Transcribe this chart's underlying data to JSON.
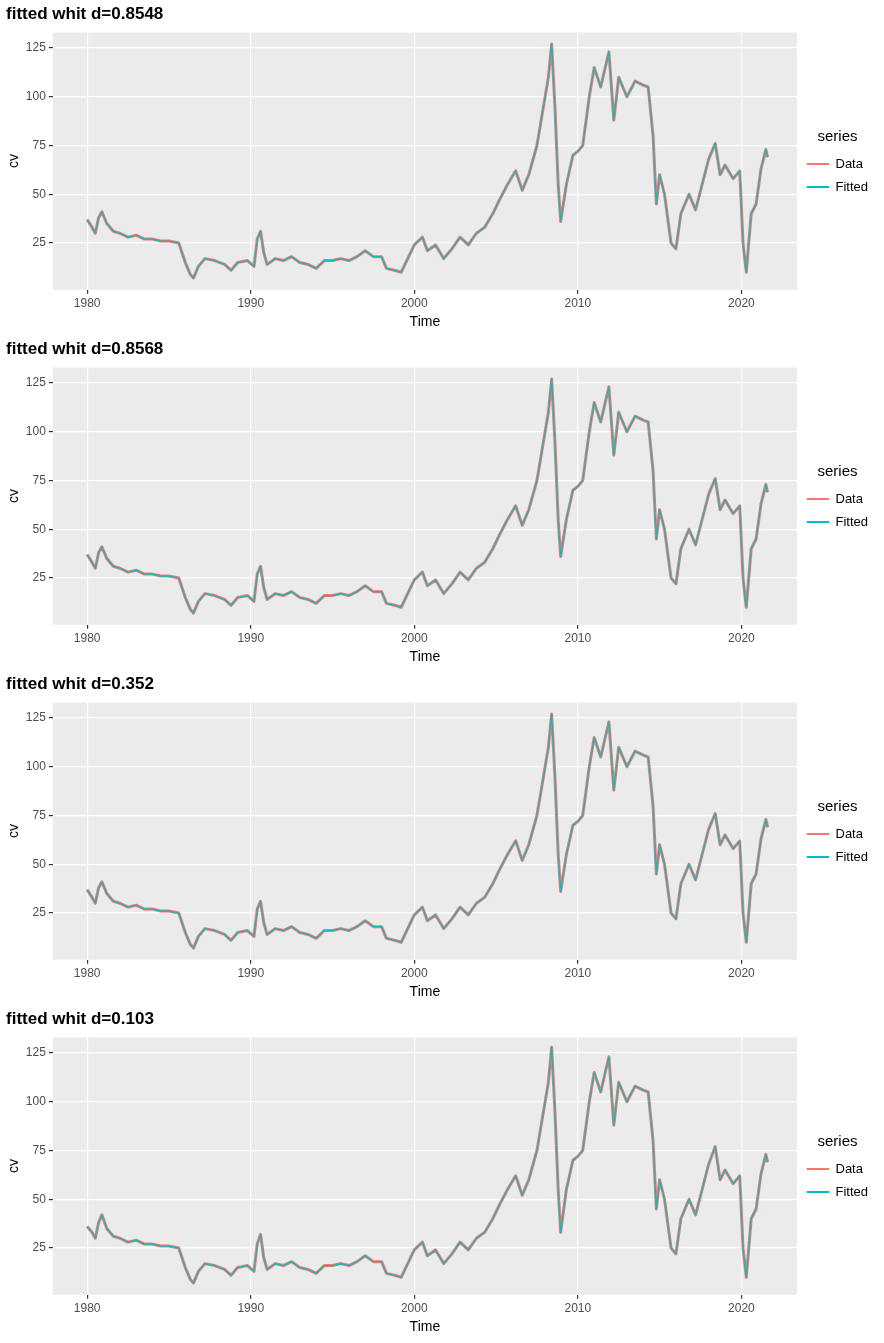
{
  "chart_data": [
    {
      "type": "line",
      "title": "fitted whit d=0.8548",
      "xlabel": "Time",
      "ylabel": "cv",
      "legend_title": "series",
      "legend": "right",
      "grid": true,
      "xlim": [
        1977.9,
        2023.4
      ],
      "xticks": [
        1980,
        1990,
        2000,
        2010,
        2020
      ],
      "ylim": [
        1,
        133
      ],
      "yticks": [
        25,
        50,
        75,
        100,
        125
      ],
      "x": [
        1980.0,
        1980.3,
        1980.5,
        1980.7,
        1980.9,
        1981.2,
        1981.6,
        1982.0,
        1982.5,
        1983,
        1983.5,
        1984,
        1984.5,
        1985,
        1985.6,
        1986.0,
        1986.3,
        1986.5,
        1986.8,
        1987.2,
        1987.8,
        1988.4,
        1988.8,
        1989.2,
        1989.8,
        1990.2,
        1990.4,
        1990.6,
        1990.8,
        1991.0,
        1991.5,
        1992,
        1992.5,
        1993,
        1993.5,
        1994,
        1994.5,
        1995,
        1995.5,
        1996,
        1996.5,
        1997,
        1997.5,
        1998,
        1998.3,
        1998.8,
        1999.2,
        1999.6,
        2000,
        2000.5,
        2000.8,
        2001.3,
        2001.8,
        2002.3,
        2002.8,
        2003.3,
        2003.8,
        2004.3,
        2004.8,
        2005.2,
        2005.7,
        2006.2,
        2006.6,
        2007,
        2007.5,
        2007.9,
        2008.2,
        2008.4,
        2008.6,
        2008.8,
        2008.95,
        2009.3,
        2009.7,
        2010,
        2010.3,
        2010.7,
        2011,
        2011.4,
        2011.9,
        2012.2,
        2012.5,
        2013,
        2013.5,
        2014,
        2014.3,
        2014.6,
        2014.8,
        2015.0,
        2015.3,
        2015.7,
        2016,
        2016.3,
        2016.8,
        2017.2,
        2017.6,
        2018,
        2018.4,
        2018.7,
        2019,
        2019.5,
        2019.9,
        2020.1,
        2020.3,
        2020.6,
        2020.9,
        2021.2,
        2021.5,
        2021.6
      ],
      "series": [
        {
          "name": "Data",
          "color": "#f8766d",
          "values": [
            37,
            33,
            30,
            38,
            41,
            35,
            31,
            30,
            28,
            29,
            27,
            27,
            26,
            26,
            25,
            15,
            9,
            7,
            13,
            17,
            16,
            14,
            11,
            15,
            16,
            13,
            27,
            31,
            20,
            14,
            17,
            16,
            18,
            15,
            14,
            12,
            16,
            16,
            17,
            16,
            18,
            21,
            18,
            18,
            12,
            11,
            10,
            17,
            24,
            28,
            21,
            24,
            17,
            22,
            28,
            24,
            30,
            33,
            40,
            47,
            55,
            62,
            52,
            60,
            75,
            95,
            110,
            127,
            95,
            55,
            36,
            55,
            70,
            72,
            75,
            100,
            115,
            105,
            123,
            88,
            110,
            100,
            108,
            106,
            105,
            80,
            45,
            60,
            50,
            25,
            22,
            40,
            50,
            42,
            55,
            68,
            76,
            60,
            65,
            58,
            62,
            25,
            10,
            40,
            45,
            63,
            73,
            69
          ]
        },
        {
          "name": "Fitted",
          "color": "#00bfc4",
          "values": [
            37,
            33,
            30,
            38,
            41,
            35,
            31,
            30,
            28,
            29,
            27,
            27,
            26,
            26,
            25,
            15,
            9,
            7,
            13,
            17,
            16,
            14,
            11,
            15,
            16,
            13,
            27,
            31,
            20,
            14,
            17,
            16,
            18,
            15,
            14,
            12,
            16,
            16,
            17,
            16,
            18,
            21,
            18,
            18,
            12,
            11,
            10,
            17,
            24,
            28,
            21,
            24,
            17,
            22,
            28,
            24,
            30,
            33,
            40,
            47,
            55,
            62,
            52,
            60,
            75,
            95,
            110,
            127,
            95,
            55,
            36,
            55,
            70,
            72,
            75,
            100,
            115,
            105,
            123,
            88,
            110,
            100,
            108,
            106,
            105,
            80,
            45,
            60,
            50,
            25,
            22,
            40,
            50,
            42,
            55,
            68,
            76,
            60,
            65,
            58,
            62,
            25,
            10,
            40,
            45,
            63,
            73,
            69
          ]
        }
      ]
    },
    {
      "type": "line",
      "title": "fitted whit d=0.8568",
      "xlabel": "Time",
      "ylabel": "cv",
      "legend_title": "series",
      "legend": "right",
      "grid": true,
      "xlim": [
        1977.9,
        2023.4
      ],
      "xticks": [
        1980,
        1990,
        2000,
        2010,
        2020
      ],
      "ylim": [
        1,
        133
      ],
      "yticks": [
        25,
        50,
        75,
        100,
        125
      ],
      "x": [
        1980.0,
        1980.3,
        1980.5,
        1980.7,
        1980.9,
        1981.2,
        1981.6,
        1982.0,
        1982.5,
        1983,
        1983.5,
        1984,
        1984.5,
        1985,
        1985.6,
        1986.0,
        1986.3,
        1986.5,
        1986.8,
        1987.2,
        1987.8,
        1988.4,
        1988.8,
        1989.2,
        1989.8,
        1990.2,
        1990.4,
        1990.6,
        1990.8,
        1991.0,
        1991.5,
        1992,
        1992.5,
        1993,
        1993.5,
        1994,
        1994.5,
        1995,
        1995.5,
        1996,
        1996.5,
        1997,
        1997.5,
        1998,
        1998.3,
        1998.8,
        1999.2,
        1999.6,
        2000,
        2000.5,
        2000.8,
        2001.3,
        2001.8,
        2002.3,
        2002.8,
        2003.3,
        2003.8,
        2004.3,
        2004.8,
        2005.2,
        2005.7,
        2006.2,
        2006.6,
        2007,
        2007.5,
        2007.9,
        2008.2,
        2008.4,
        2008.6,
        2008.8,
        2008.95,
        2009.3,
        2009.7,
        2010,
        2010.3,
        2010.7,
        2011,
        2011.4,
        2011.9,
        2012.2,
        2012.5,
        2013,
        2013.5,
        2014,
        2014.3,
        2014.6,
        2014.8,
        2015.0,
        2015.3,
        2015.7,
        2016,
        2016.3,
        2016.8,
        2017.2,
        2017.6,
        2018,
        2018.4,
        2018.7,
        2019,
        2019.5,
        2019.9,
        2020.1,
        2020.3,
        2020.6,
        2020.9,
        2021.2,
        2021.5,
        2021.6
      ],
      "series": [
        {
          "name": "Data",
          "color": "#f8766d",
          "values": [
            37,
            33,
            30,
            38,
            41,
            35,
            31,
            30,
            28,
            29,
            27,
            27,
            26,
            26,
            25,
            15,
            9,
            7,
            13,
            17,
            16,
            14,
            11,
            15,
            16,
            13,
            27,
            31,
            20,
            14,
            17,
            16,
            18,
            15,
            14,
            12,
            16,
            16,
            17,
            16,
            18,
            21,
            18,
            18,
            12,
            11,
            10,
            17,
            24,
            28,
            21,
            24,
            17,
            22,
            28,
            24,
            30,
            33,
            40,
            47,
            55,
            62,
            52,
            60,
            75,
            95,
            110,
            127,
            95,
            55,
            36,
            55,
            70,
            72,
            75,
            100,
            115,
            105,
            123,
            88,
            110,
            100,
            108,
            106,
            105,
            80,
            45,
            60,
            50,
            25,
            22,
            40,
            50,
            42,
            55,
            68,
            76,
            60,
            65,
            58,
            62,
            25,
            10,
            40,
            45,
            63,
            73,
            69
          ]
        },
        {
          "name": "Fitted",
          "color": "#00bfc4",
          "values": [
            37,
            33,
            30,
            38,
            41,
            35,
            31,
            30,
            28,
            29,
            27,
            27,
            26,
            26,
            25,
            15,
            9,
            7,
            13,
            17,
            16,
            14,
            11,
            15,
            16,
            13,
            27,
            31,
            20,
            14,
            17,
            16,
            18,
            15,
            14,
            12,
            16,
            16,
            17,
            16,
            18,
            21,
            18,
            18,
            12,
            11,
            10,
            17,
            24,
            28,
            21,
            24,
            17,
            22,
            28,
            24,
            30,
            33,
            40,
            47,
            55,
            62,
            52,
            60,
            75,
            95,
            110,
            127,
            95,
            55,
            36,
            55,
            70,
            72,
            75,
            100,
            115,
            105,
            123,
            88,
            110,
            100,
            108,
            106,
            105,
            80,
            45,
            60,
            50,
            25,
            22,
            40,
            50,
            42,
            55,
            68,
            76,
            60,
            65,
            58,
            62,
            25,
            10,
            40,
            45,
            63,
            73,
            69
          ]
        }
      ]
    },
    {
      "type": "line",
      "title": "fitted whit d=0.352",
      "xlabel": "Time",
      "ylabel": "cv",
      "legend_title": "series",
      "legend": "right",
      "grid": true,
      "xlim": [
        1977.9,
        2023.4
      ],
      "xticks": [
        1980,
        1990,
        2000,
        2010,
        2020
      ],
      "ylim": [
        1,
        133
      ],
      "yticks": [
        25,
        50,
        75,
        100,
        125
      ],
      "x": [
        1980.0,
        1980.3,
        1980.5,
        1980.7,
        1980.9,
        1981.2,
        1981.6,
        1982.0,
        1982.5,
        1983,
        1983.5,
        1984,
        1984.5,
        1985,
        1985.6,
        1986.0,
        1986.3,
        1986.5,
        1986.8,
        1987.2,
        1987.8,
        1988.4,
        1988.8,
        1989.2,
        1989.8,
        1990.2,
        1990.4,
        1990.6,
        1990.8,
        1991.0,
        1991.5,
        1992,
        1992.5,
        1993,
        1993.5,
        1994,
        1994.5,
        1995,
        1995.5,
        1996,
        1996.5,
        1997,
        1997.5,
        1998,
        1998.3,
        1998.8,
        1999.2,
        1999.6,
        2000,
        2000.5,
        2000.8,
        2001.3,
        2001.8,
        2002.3,
        2002.8,
        2003.3,
        2003.8,
        2004.3,
        2004.8,
        2005.2,
        2005.7,
        2006.2,
        2006.6,
        2007,
        2007.5,
        2007.9,
        2008.2,
        2008.4,
        2008.6,
        2008.8,
        2008.95,
        2009.3,
        2009.7,
        2010,
        2010.3,
        2010.7,
        2011,
        2011.4,
        2011.9,
        2012.2,
        2012.5,
        2013,
        2013.5,
        2014,
        2014.3,
        2014.6,
        2014.8,
        2015.0,
        2015.3,
        2015.7,
        2016,
        2016.3,
        2016.8,
        2017.2,
        2017.6,
        2018,
        2018.4,
        2018.7,
        2019,
        2019.5,
        2019.9,
        2020.1,
        2020.3,
        2020.6,
        2020.9,
        2021.2,
        2021.5,
        2021.6
      ],
      "series": [
        {
          "name": "Data",
          "color": "#f8766d",
          "values": [
            37,
            33,
            30,
            38,
            41,
            35,
            31,
            30,
            28,
            29,
            27,
            27,
            26,
            26,
            25,
            15,
            9,
            7,
            13,
            17,
            16,
            14,
            11,
            15,
            16,
            13,
            27,
            31,
            20,
            14,
            17,
            16,
            18,
            15,
            14,
            12,
            16,
            16,
            17,
            16,
            18,
            21,
            18,
            18,
            12,
            11,
            10,
            17,
            24,
            28,
            21,
            24,
            17,
            22,
            28,
            24,
            30,
            33,
            40,
            47,
            55,
            62,
            52,
            60,
            75,
            95,
            110,
            127,
            95,
            55,
            36,
            55,
            70,
            72,
            75,
            100,
            115,
            105,
            123,
            88,
            110,
            100,
            108,
            106,
            105,
            80,
            45,
            60,
            50,
            25,
            22,
            40,
            50,
            42,
            55,
            68,
            76,
            60,
            65,
            58,
            62,
            25,
            10,
            40,
            45,
            63,
            73,
            69
          ]
        },
        {
          "name": "Fitted",
          "color": "#00bfc4",
          "values": [
            37,
            33,
            30,
            38,
            41,
            35,
            31,
            30,
            28,
            29,
            27,
            27,
            26,
            26,
            25,
            15,
            9,
            7,
            13,
            17,
            16,
            14,
            11,
            15,
            16,
            13,
            27,
            31,
            20,
            14,
            17,
            16,
            18,
            15,
            14,
            12,
            16,
            16,
            17,
            16,
            18,
            21,
            18,
            18,
            12,
            11,
            10,
            17,
            24,
            28,
            21,
            24,
            17,
            22,
            28,
            24,
            30,
            33,
            40,
            47,
            55,
            62,
            52,
            60,
            75,
            95,
            110,
            127,
            95,
            55,
            36,
            55,
            70,
            72,
            75,
            100,
            115,
            105,
            123,
            88,
            110,
            100,
            108,
            106,
            105,
            80,
            45,
            60,
            50,
            25,
            22,
            40,
            50,
            42,
            55,
            68,
            76,
            60,
            65,
            58,
            62,
            25,
            10,
            40,
            45,
            63,
            73,
            69
          ]
        }
      ]
    },
    {
      "type": "line",
      "title": "fitted whit d=0.103",
      "xlabel": "Time",
      "ylabel": "cv",
      "legend_title": "series",
      "legend": "right",
      "grid": true,
      "xlim": [
        1977.9,
        2023.4
      ],
      "xticks": [
        1980,
        1990,
        2000,
        2010,
        2020
      ],
      "ylim": [
        1,
        133
      ],
      "yticks": [
        25,
        50,
        75,
        100,
        125
      ],
      "x": [
        1980.0,
        1980.3,
        1980.5,
        1980.7,
        1980.9,
        1981.2,
        1981.6,
        1982.0,
        1982.5,
        1983,
        1983.5,
        1984,
        1984.5,
        1985,
        1985.6,
        1986.0,
        1986.3,
        1986.5,
        1986.8,
        1987.2,
        1987.8,
        1988.4,
        1988.8,
        1989.2,
        1989.8,
        1990.2,
        1990.4,
        1990.6,
        1990.8,
        1991.0,
        1991.5,
        1992,
        1992.5,
        1993,
        1993.5,
        1994,
        1994.5,
        1995,
        1995.5,
        1996,
        1996.5,
        1997,
        1997.5,
        1998,
        1998.3,
        1998.8,
        1999.2,
        1999.6,
        2000,
        2000.5,
        2000.8,
        2001.3,
        2001.8,
        2002.3,
        2002.8,
        2003.3,
        2003.8,
        2004.3,
        2004.8,
        2005.2,
        2005.7,
        2006.2,
        2006.6,
        2007,
        2007.5,
        2007.9,
        2008.2,
        2008.4,
        2008.6,
        2008.8,
        2008.95,
        2009.3,
        2009.7,
        2010,
        2010.3,
        2010.7,
        2011,
        2011.4,
        2011.9,
        2012.2,
        2012.5,
        2013,
        2013.5,
        2014,
        2014.3,
        2014.6,
        2014.8,
        2015.0,
        2015.3,
        2015.7,
        2016,
        2016.3,
        2016.8,
        2017.2,
        2017.6,
        2018,
        2018.4,
        2018.7,
        2019,
        2019.5,
        2019.9,
        2020.1,
        2020.3,
        2020.6,
        2020.9,
        2021.2,
        2021.5,
        2021.6
      ],
      "series": [
        {
          "name": "Data",
          "color": "#f8766d",
          "values": [
            36,
            33,
            30,
            38,
            42,
            35,
            31,
            30,
            28,
            29,
            27,
            27,
            26,
            26,
            25,
            15,
            9,
            7,
            13,
            17,
            16,
            14,
            11,
            15,
            16,
            13,
            27,
            32,
            20,
            14,
            17,
            16,
            18,
            15,
            14,
            12,
            16,
            16,
            17,
            16,
            18,
            21,
            18,
            18,
            12,
            11,
            10,
            17,
            24,
            28,
            21,
            24,
            17,
            22,
            28,
            24,
            30,
            33,
            40,
            47,
            55,
            62,
            52,
            60,
            75,
            95,
            110,
            128,
            95,
            55,
            33,
            55,
            70,
            72,
            75,
            100,
            115,
            105,
            123,
            88,
            110,
            100,
            108,
            106,
            105,
            80,
            45,
            60,
            50,
            25,
            22,
            40,
            50,
            42,
            55,
            68,
            77,
            60,
            65,
            58,
            62,
            25,
            10,
            40,
            45,
            63,
            73,
            69
          ]
        },
        {
          "name": "Fitted",
          "color": "#00bfc4",
          "values": [
            36,
            33,
            30,
            38,
            42,
            35,
            31,
            30,
            28,
            29,
            27,
            27,
            26,
            26,
            25,
            15,
            9,
            7,
            13,
            17,
            16,
            14,
            11,
            15,
            16,
            13,
            27,
            32,
            20,
            14,
            17,
            16,
            18,
            15,
            14,
            12,
            16,
            16,
            17,
            16,
            18,
            21,
            18,
            18,
            12,
            11,
            10,
            17,
            24,
            28,
            21,
            24,
            17,
            22,
            28,
            24,
            30,
            33,
            40,
            47,
            55,
            62,
            52,
            60,
            75,
            95,
            110,
            128,
            95,
            55,
            33,
            55,
            70,
            72,
            75,
            100,
            115,
            105,
            123,
            88,
            110,
            100,
            108,
            106,
            105,
            80,
            45,
            60,
            50,
            25,
            22,
            40,
            50,
            42,
            55,
            68,
            77,
            60,
            65,
            58,
            62,
            25,
            10,
            40,
            45,
            63,
            73,
            69
          ]
        }
      ]
    }
  ]
}
